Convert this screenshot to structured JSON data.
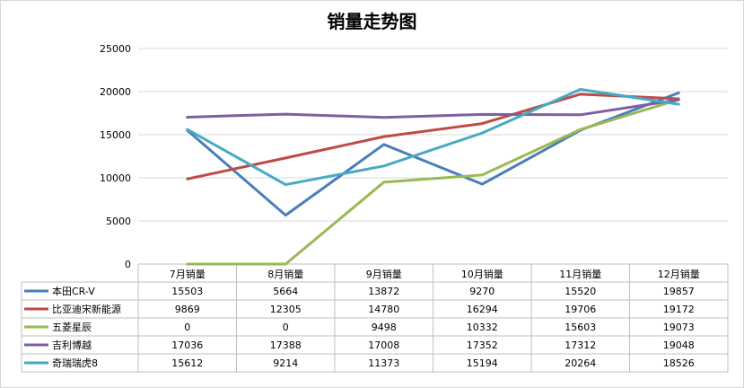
{
  "chart_data": {
    "type": "line",
    "title": "销量走势图",
    "categories": [
      "7月销量",
      "8月销量",
      "9月销量",
      "10月销量",
      "11月销量",
      "12月销量"
    ],
    "ylim": [
      0,
      25000
    ],
    "yticks": [
      0,
      5000,
      10000,
      15000,
      20000,
      25000
    ],
    "grid": true,
    "legend": "data-table",
    "series": [
      {
        "name": "本田CR-V",
        "color": "#4a7ebb",
        "values": [
          15503,
          5664,
          13872,
          9270,
          15520,
          19857
        ]
      },
      {
        "name": "比亚迪宋新能源",
        "color": "#be4b48",
        "values": [
          9869,
          12305,
          14780,
          16294,
          19706,
          19172
        ]
      },
      {
        "name": "五菱星辰",
        "color": "#98b954",
        "values": [
          0,
          0,
          9498,
          10332,
          15603,
          19073
        ]
      },
      {
        "name": "吉利博越",
        "color": "#7d60a0",
        "values": [
          17036,
          17388,
          17008,
          17352,
          17312,
          19048
        ]
      },
      {
        "name": "奇瑞瑞虎8",
        "color": "#46aac5",
        "values": [
          15612,
          9214,
          11373,
          15194,
          20264,
          18526
        ]
      }
    ]
  }
}
